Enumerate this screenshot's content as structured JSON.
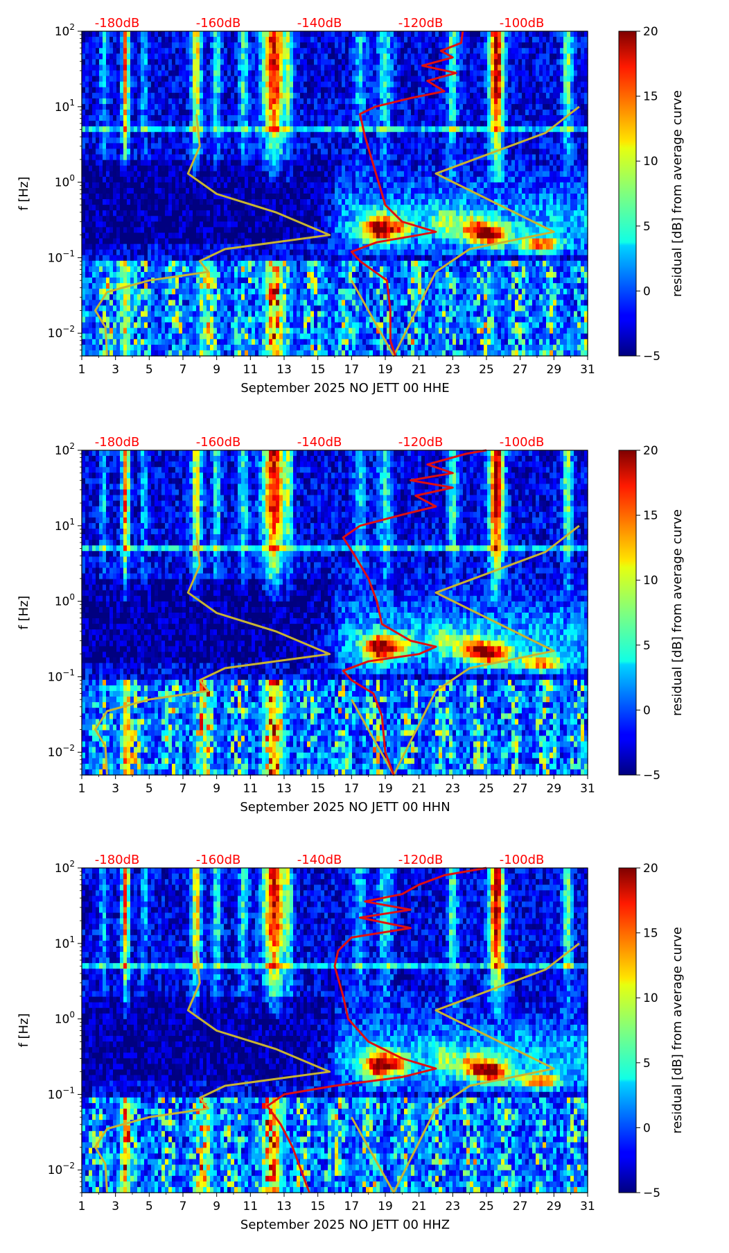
{
  "chart_data": [
    {
      "type": "heatmap",
      "title": "",
      "xlabel": "September 2025 NO JETT 00 HHE",
      "ylabel": "f [Hz]",
      "colorbar_label": "residual [dB] from average curve",
      "x_ticks": [
        "1",
        "3",
        "5",
        "7",
        "9",
        "11",
        "13",
        "15",
        "17",
        "19",
        "21",
        "23",
        "25",
        "27",
        "29",
        "31"
      ],
      "y_ticks": [
        {
          "base": "10",
          "exp": "2"
        },
        {
          "base": "10",
          "exp": "1"
        },
        {
          "base": "10",
          "exp": "0"
        },
        {
          "base": "10",
          "exp": "−1"
        },
        {
          "base": "10",
          "exp": "−2"
        }
      ],
      "top_labels": [
        "-180dB",
        "-160dB",
        "-140dB",
        "-120dB",
        "-100dB"
      ],
      "colorbar_ticks": [
        "20",
        "15",
        "10",
        "5",
        "0",
        "−5"
      ],
      "zlim": [
        -5,
        20
      ],
      "xlim": [
        1,
        31
      ],
      "ylim_hz": [
        0.005,
        100
      ],
      "red_curve_day_vs_hz": [
        [
          19.6,
          0.005
        ],
        [
          19.3,
          0.008
        ],
        [
          19.3,
          0.02
        ],
        [
          19.1,
          0.05
        ],
        [
          17.5,
          0.09
        ],
        [
          17.0,
          0.12
        ],
        [
          18.5,
          0.16
        ],
        [
          21.0,
          0.2
        ],
        [
          22.0,
          0.22
        ],
        [
          20.0,
          0.3
        ],
        [
          19.0,
          0.5
        ],
        [
          18.6,
          1.0
        ],
        [
          18.2,
          2.0
        ],
        [
          17.8,
          4.0
        ],
        [
          17.5,
          8.0
        ],
        [
          18.4,
          10
        ],
        [
          20.5,
          13
        ],
        [
          22.5,
          16
        ],
        [
          21.5,
          22
        ],
        [
          23.2,
          28
        ],
        [
          21.2,
          35
        ],
        [
          23.0,
          45
        ],
        [
          22.3,
          55
        ],
        [
          23.5,
          70
        ],
        [
          23.6,
          100
        ]
      ],
      "yellow_curve_day_vs_hz": [
        [
          2.5,
          0.005
        ],
        [
          2.4,
          0.012
        ],
        [
          1.8,
          0.02
        ],
        [
          2.5,
          0.035
        ],
        [
          5.0,
          0.05
        ],
        [
          8.5,
          0.065
        ],
        [
          8.0,
          0.09
        ],
        [
          9.5,
          0.13
        ],
        [
          15.7,
          0.2
        ],
        [
          12.5,
          0.4
        ],
        [
          9.0,
          0.7
        ],
        [
          7.3,
          1.3
        ],
        [
          8.0,
          3.0
        ],
        [
          7.8,
          8.0
        ],
        [
          17.0,
          0.05
        ],
        [
          19.5,
          0.005
        ],
        [
          22.0,
          0.065
        ],
        [
          24.0,
          0.13
        ],
        [
          29.0,
          0.22
        ],
        [
          22.0,
          1.3
        ],
        [
          28.5,
          4.5
        ],
        [
          30.5,
          10
        ]
      ]
    },
    {
      "type": "heatmap",
      "title": "",
      "xlabel": "September 2025 NO JETT 00 HHN",
      "ylabel": "f [Hz]",
      "colorbar_label": "residual [dB] from average curve",
      "x_ticks": [
        "1",
        "3",
        "5",
        "7",
        "9",
        "11",
        "13",
        "15",
        "17",
        "19",
        "21",
        "23",
        "25",
        "27",
        "29",
        "31"
      ],
      "y_ticks": [
        {
          "base": "10",
          "exp": "2"
        },
        {
          "base": "10",
          "exp": "1"
        },
        {
          "base": "10",
          "exp": "0"
        },
        {
          "base": "10",
          "exp": "−1"
        },
        {
          "base": "10",
          "exp": "−2"
        }
      ],
      "top_labels": [
        "-180dB",
        "-160dB",
        "-140dB",
        "-120dB",
        "-100dB"
      ],
      "colorbar_ticks": [
        "20",
        "15",
        "10",
        "5",
        "0",
        "−5"
      ],
      "zlim": [
        -5,
        20
      ],
      "xlim": [
        1,
        31
      ],
      "ylim_hz": [
        0.005,
        100
      ],
      "red_curve_day_vs_hz": [
        [
          19.5,
          0.005
        ],
        [
          19.0,
          0.01
        ],
        [
          18.8,
          0.03
        ],
        [
          18.3,
          0.06
        ],
        [
          17.0,
          0.09
        ],
        [
          16.5,
          0.12
        ],
        [
          18.0,
          0.16
        ],
        [
          21.0,
          0.2
        ],
        [
          22.0,
          0.25
        ],
        [
          20.5,
          0.3
        ],
        [
          18.8,
          0.5
        ],
        [
          18.5,
          1.0
        ],
        [
          18.0,
          2.0
        ],
        [
          17.2,
          4.0
        ],
        [
          16.5,
          7.0
        ],
        [
          17.5,
          10
        ],
        [
          20.0,
          14
        ],
        [
          22.0,
          18
        ],
        [
          20.8,
          25
        ],
        [
          23.0,
          32
        ],
        [
          20.5,
          40
        ],
        [
          23.0,
          50
        ],
        [
          21.5,
          65
        ],
        [
          23.8,
          90
        ],
        [
          25.0,
          100
        ]
      ],
      "yellow_curve_day_vs_hz": [
        [
          2.5,
          0.005
        ],
        [
          2.4,
          0.012
        ],
        [
          1.8,
          0.02
        ],
        [
          2.5,
          0.035
        ],
        [
          5.0,
          0.05
        ],
        [
          8.5,
          0.065
        ],
        [
          8.0,
          0.09
        ],
        [
          9.5,
          0.13
        ],
        [
          15.7,
          0.2
        ],
        [
          12.5,
          0.4
        ],
        [
          9.0,
          0.7
        ],
        [
          7.3,
          1.3
        ],
        [
          8.0,
          3.0
        ],
        [
          7.8,
          8.0
        ],
        [
          17.0,
          0.05
        ],
        [
          19.5,
          0.005
        ],
        [
          22.0,
          0.065
        ],
        [
          24.0,
          0.13
        ],
        [
          29.0,
          0.22
        ],
        [
          22.0,
          1.3
        ],
        [
          28.5,
          4.5
        ],
        [
          30.5,
          10
        ]
      ]
    },
    {
      "type": "heatmap",
      "title": "",
      "xlabel": "September 2025 NO JETT 00 HHZ",
      "ylabel": "f [Hz]",
      "colorbar_label": "residual [dB] from average curve",
      "x_ticks": [
        "1",
        "3",
        "5",
        "7",
        "9",
        "11",
        "13",
        "15",
        "17",
        "19",
        "21",
        "23",
        "25",
        "27",
        "29",
        "31"
      ],
      "y_ticks": [
        {
          "base": "10",
          "exp": "2"
        },
        {
          "base": "10",
          "exp": "1"
        },
        {
          "base": "10",
          "exp": "0"
        },
        {
          "base": "10",
          "exp": "−1"
        },
        {
          "base": "10",
          "exp": "−2"
        }
      ],
      "top_labels": [
        "-180dB",
        "-160dB",
        "-140dB",
        "-120dB",
        "-100dB"
      ],
      "colorbar_ticks": [
        "20",
        "15",
        "10",
        "5",
        "0",
        "−5"
      ],
      "zlim": [
        -5,
        20
      ],
      "xlim": [
        1,
        31
      ],
      "ylim_hz": [
        0.005,
        100
      ],
      "red_curve_day_vs_hz": [
        [
          14.5,
          0.005
        ],
        [
          14.0,
          0.01
        ],
        [
          13.5,
          0.02
        ],
        [
          12.8,
          0.04
        ],
        [
          12.0,
          0.07
        ],
        [
          13.0,
          0.1
        ],
        [
          16.0,
          0.13
        ],
        [
          20.0,
          0.17
        ],
        [
          22.0,
          0.22
        ],
        [
          20.0,
          0.3
        ],
        [
          18.0,
          0.5
        ],
        [
          16.8,
          1.0
        ],
        [
          16.5,
          2.0
        ],
        [
          16.0,
          5.0
        ],
        [
          16.2,
          8.0
        ],
        [
          17.0,
          12
        ],
        [
          20.5,
          16
        ],
        [
          17.5,
          22
        ],
        [
          20.5,
          28
        ],
        [
          17.8,
          36
        ],
        [
          20.0,
          45
        ],
        [
          21.0,
          60
        ],
        [
          22.5,
          80
        ],
        [
          25.0,
          100
        ]
      ],
      "yellow_curve_day_vs_hz": [
        [
          2.5,
          0.005
        ],
        [
          2.4,
          0.012
        ],
        [
          1.8,
          0.02
        ],
        [
          2.5,
          0.035
        ],
        [
          5.0,
          0.05
        ],
        [
          8.5,
          0.065
        ],
        [
          8.0,
          0.09
        ],
        [
          9.5,
          0.13
        ],
        [
          15.7,
          0.2
        ],
        [
          12.5,
          0.4
        ],
        [
          9.0,
          0.7
        ],
        [
          7.3,
          1.3
        ],
        [
          8.0,
          3.0
        ],
        [
          7.8,
          8.0
        ],
        [
          17.0,
          0.05
        ],
        [
          19.5,
          0.005
        ],
        [
          22.0,
          0.065
        ],
        [
          24.0,
          0.13
        ],
        [
          29.0,
          0.22
        ],
        [
          22.0,
          1.3
        ],
        [
          28.5,
          4.5
        ],
        [
          30.5,
          10
        ]
      ]
    }
  ],
  "colors": {
    "red_curve": "#e01010",
    "yellow_curve": "#c8b432",
    "db_label": "#ff0000"
  }
}
